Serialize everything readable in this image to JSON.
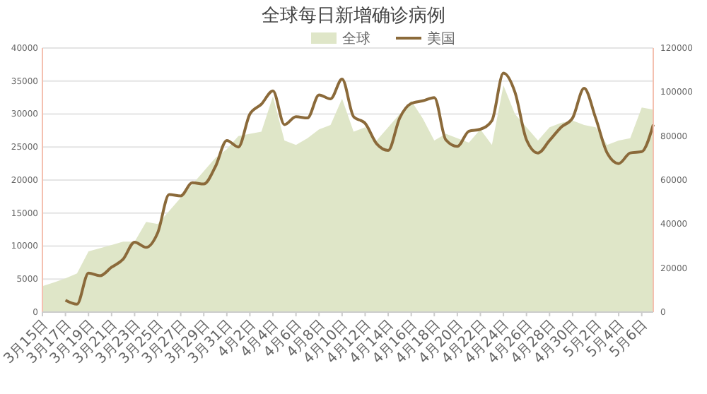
{
  "chart_data": {
    "type": "area",
    "title": "全球每日新增确诊病例",
    "categories": [
      "3月15日",
      null,
      "3月17日",
      null,
      "3月19日",
      null,
      "3月21日",
      null,
      "3月23日",
      null,
      "3月25日",
      null,
      "3月27日",
      null,
      "3月29日",
      null,
      "3月31日",
      null,
      "4月2日",
      null,
      "4月4日",
      null,
      "4月6日",
      null,
      "4月8日",
      null,
      "4月10日",
      null,
      "4月12日",
      null,
      "4月14日",
      null,
      "4月16日",
      null,
      "4月18日",
      null,
      "4月20日",
      null,
      "4月22日",
      null,
      "4月24日",
      null,
      "4月26日",
      null,
      "4月28日",
      null,
      "4月30日",
      null,
      "5月2日",
      null,
      "5月4日",
      null,
      "5月6日",
      null
    ],
    "series": [
      {
        "name": "全球",
        "axis": "y2",
        "color": "#dfe6c8",
        "values": [
          11800,
          13500,
          15300,
          17600,
          27600,
          29000,
          30500,
          32000,
          32000,
          41000,
          40000,
          46000,
          52000,
          58000,
          64000,
          70000,
          74000,
          80000,
          81000,
          82000,
          98000,
          78000,
          76000,
          79000,
          83000,
          85000,
          97000,
          82000,
          84000,
          78000,
          84000,
          90000,
          96000,
          88000,
          78000,
          81000,
          79000,
          77000,
          83000,
          76000,
          103000,
          90000,
          84000,
          78000,
          84000,
          86000,
          87000,
          85000,
          84000,
          76000,
          78000,
          79000,
          93000,
          92000
        ]
      },
      {
        "name": "美国",
        "type": "line",
        "color": "#8b6a3a",
        "values": [
          null,
          null,
          1800,
          1200,
          5900,
          5500,
          6800,
          8000,
          10600,
          9800,
          12000,
          17800,
          17600,
          19600,
          19400,
          22000,
          26000,
          25000,
          30000,
          31500,
          33500,
          28400,
          29600,
          29400,
          32900,
          32300,
          35300,
          29600,
          28600,
          25500,
          24500,
          29400,
          31600,
          32000,
          32500,
          26100,
          25100,
          27400,
          27700,
          29000,
          36200,
          33300,
          26100,
          24100,
          26000,
          28000,
          29400,
          33900,
          29400,
          24100,
          22500,
          24100,
          24300,
          28400
        ]
      }
    ],
    "ylim": [
      0,
      40000
    ],
    "yticks": [
      0,
      5000,
      10000,
      15000,
      20000,
      25000,
      30000,
      35000,
      40000
    ],
    "y2lim": [
      0,
      120000
    ],
    "y2ticks": [
      0,
      20000,
      40000,
      60000,
      80000,
      100000,
      120000
    ],
    "grid": "y",
    "legend": "top",
    "marker": "none",
    "line_style": "solid"
  }
}
